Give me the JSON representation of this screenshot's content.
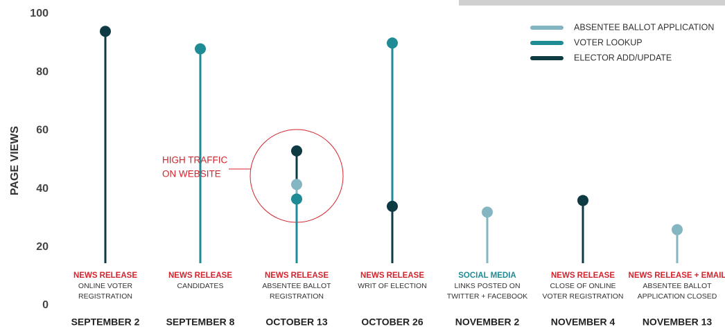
{
  "chart_data": {
    "type": "lollipop",
    "y_label": "PAGE VIEWS",
    "categories": [
      "SEPTEMBER 2",
      "SEPTEMBER 8",
      "OCTOBER 13",
      "OCTOBER 26",
      "NOVEMBER 2",
      "NOVEMBER 4",
      "NOVEMBER 13"
    ],
    "series": [
      {
        "name": "ABSENTEE BALLOT APPLICATION",
        "color": "#84b6c2",
        "values": [
          null,
          null,
          41.5,
          null,
          32,
          null,
          26
        ]
      },
      {
        "name": "VOTER LOOKUP",
        "color": "#1f8b95",
        "values": [
          null,
          88,
          36.5,
          90,
          null,
          null,
          null
        ]
      },
      {
        "name": "ELECTOR ADD/UPDATE",
        "color": "#0e3a44",
        "values": [
          94,
          null,
          53,
          34,
          null,
          36,
          null
        ]
      }
    ],
    "notes": [
      {
        "type": "NEWS RELEASE",
        "color": "#d3242c",
        "lines": [
          "ONLINE VOTER",
          "REGISTRATION"
        ]
      },
      {
        "type": "NEWS RELEASE",
        "color": "#d3242c",
        "lines": [
          "CANDIDATES"
        ]
      },
      {
        "type": "NEWS RELEASE",
        "color": "#d3242c",
        "lines": [
          "ABSENTEE BALLOT",
          "REGISTRATION"
        ]
      },
      {
        "type": "NEWS RELEASE",
        "color": "#d3242c",
        "lines": [
          "WRIT OF ELECTION"
        ]
      },
      {
        "type": "SOCIAL MEDIA",
        "color": "#1f8b95",
        "lines": [
          "LINKS POSTED ON",
          "TWITTER + FACEBOOK"
        ]
      },
      {
        "type": "NEWS RELEASE",
        "color": "#d3242c",
        "lines": [
          "CLOSE OF ONLINE",
          "VOTER REGISTRATION"
        ]
      },
      {
        "type": "NEWS RELEASE + EMAIL",
        "color": "#d3242c",
        "lines": [
          "ABSENTEE BALLOT",
          "APPLICATION CLOSED"
        ]
      }
    ],
    "callout": {
      "lines": [
        "HIGH TRAFFIC",
        "ON WEBSITE"
      ],
      "color": "#d3242c"
    },
    "ylim": [
      0,
      100
    ],
    "yticks": [
      0,
      20,
      40,
      60,
      80,
      100
    ],
    "legend": "top-right"
  }
}
